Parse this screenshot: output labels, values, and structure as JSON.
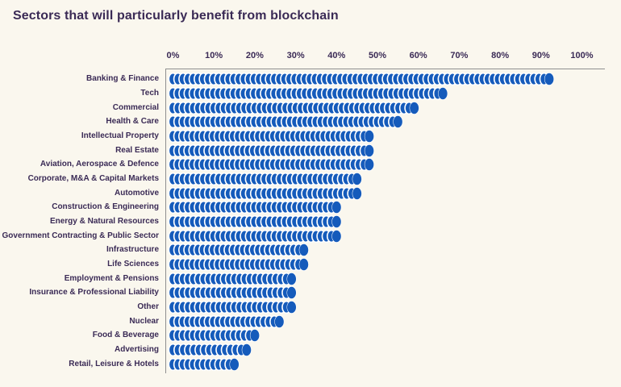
{
  "title": "Sectors that will particularly benefit from blockchain",
  "colors": {
    "background": "#FAF7EE",
    "coin_blue": "#155BBB",
    "coin_gap": "#FFFFFF",
    "text_purple": "#3A2A55",
    "axis_line": "#8F8F8F"
  },
  "x_axis": {
    "tick_labels": [
      "0%",
      "10%",
      "20%",
      "30%",
      "40%",
      "50%",
      "60%",
      "70%",
      "80%",
      "90%",
      "100%"
    ]
  },
  "chart_data": {
    "type": "bar",
    "orientation": "horizontal",
    "title": "Sectors that will particularly benefit from blockchain",
    "xlabel": "",
    "ylabel": "",
    "unit": "percent",
    "xlim": [
      0,
      100
    ],
    "xticks": [
      0,
      10,
      20,
      30,
      40,
      50,
      60,
      70,
      80,
      90,
      100
    ],
    "grid": false,
    "legend": false,
    "bar_style": "stacked-coin-discs",
    "categories": [
      "Banking & Finance",
      "Tech",
      "Commercial",
      "Health & Care",
      "Intellectual Property",
      "Real Estate",
      "Aviation, Aerospace & Defence",
      "Corporate, M&A & Capital Markets",
      "Automotive",
      "Construction & Engineering",
      "Energy & Natural Resources",
      "Government Contracting & Public Sector",
      "Infrastructure",
      "Life Sciences",
      "Employment & Pensions",
      "Insurance & Professional Liability",
      "Other",
      "Nuclear",
      "Food & Beverage",
      "Advertising",
      "Retail, Leisure & Hotels"
    ],
    "values": [
      92,
      66,
      59,
      55,
      48,
      48,
      48,
      45,
      45,
      40,
      40,
      40,
      32,
      32,
      29,
      29,
      29,
      26,
      20,
      18,
      15
    ]
  }
}
